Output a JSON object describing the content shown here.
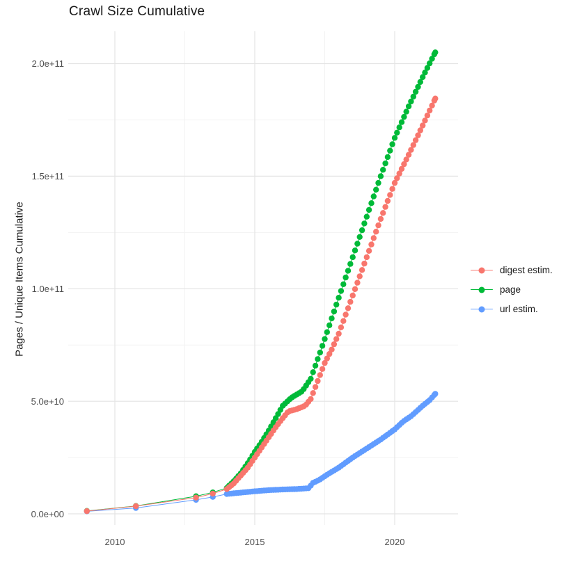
{
  "title": "Crawl Size Cumulative",
  "chart_data": {
    "type": "line",
    "title": "Crawl Size Cumulative",
    "xlabel": "",
    "ylabel": "Pages / Unique Items Cumulative",
    "value_unit": "billions (1e9) of pages / unique items",
    "x_axis": {
      "range": [
        2008.3,
        2022.3
      ],
      "ticks": [
        {
          "label": "2010",
          "year": 2010
        },
        {
          "label": "2015",
          "year": 2015
        },
        {
          "label": "2020",
          "year": 2020
        }
      ],
      "minor_years": [
        2012.5,
        2017.5
      ]
    },
    "y_axis": {
      "range_billions": [
        0,
        212
      ],
      "ticks": [
        {
          "label": "0.0e+00",
          "value_billions": 0
        },
        {
          "label": "5.0e+10",
          "value_billions": 50
        },
        {
          "label": "1.0e+11",
          "value_billions": 100
        },
        {
          "label": "1.5e+11",
          "value_billions": 150
        },
        {
          "label": "2.0e+11",
          "value_billions": 200
        }
      ],
      "minor_billions": [
        25,
        75,
        125,
        175
      ]
    },
    "grid": {
      "major_color": "#e4e4e4",
      "minor_color": "#f1f1f1",
      "background": "#ffffff"
    },
    "legend": {
      "position": "right",
      "items": [
        {
          "label": "digest estim.",
          "color": "#F8766D"
        },
        {
          "label": "page",
          "color": "#00BA38"
        },
        {
          "label": "url estim.",
          "color": "#619CFF"
        }
      ]
    },
    "point_style": {
      "shape": "circle",
      "radius_px": 4.2,
      "cadence": "monthly dots from 2014 onward"
    },
    "series": [
      {
        "name": "page",
        "color": "#00BA38",
        "points_year_billions": [
          [
            2009.0,
            1.3
          ],
          [
            2010.75,
            3.5
          ],
          [
            2012.9,
            7.8
          ],
          [
            2013.5,
            9.5
          ],
          [
            2014.0,
            11.5
          ],
          [
            2014.25,
            14.5
          ],
          [
            2014.5,
            18.0
          ],
          [
            2014.75,
            22.5
          ],
          [
            2015.0,
            27.5
          ],
          [
            2015.25,
            32.0
          ],
          [
            2015.5,
            37.0
          ],
          [
            2015.75,
            42.5
          ],
          [
            2016.0,
            48.0
          ],
          [
            2016.3,
            51.5
          ],
          [
            2016.7,
            54.5
          ],
          [
            2017.0,
            60.0
          ],
          [
            2017.4,
            74.0
          ],
          [
            2017.7,
            85.0
          ],
          [
            2018.0,
            96.0
          ],
          [
            2018.5,
            114.0
          ],
          [
            2019.0,
            132.0
          ],
          [
            2019.5,
            150.0
          ],
          [
            2020.0,
            167.0
          ],
          [
            2020.5,
            181.0
          ],
          [
            2021.0,
            194.0
          ],
          [
            2021.45,
            205.0
          ]
        ]
      },
      {
        "name": "url estim.",
        "color": "#619CFF",
        "points_year_billions": [
          [
            2009.0,
            1.1
          ],
          [
            2010.75,
            2.6
          ],
          [
            2012.9,
            6.2
          ],
          [
            2013.5,
            7.5
          ],
          [
            2014.0,
            8.8
          ],
          [
            2014.5,
            9.4
          ],
          [
            2015.0,
            10.0
          ],
          [
            2015.5,
            10.5
          ],
          [
            2016.0,
            10.8
          ],
          [
            2016.5,
            11.0
          ],
          [
            2016.95,
            11.4
          ],
          [
            2017.05,
            13.6
          ],
          [
            2017.3,
            15.0
          ],
          [
            2017.6,
            17.5
          ],
          [
            2018.0,
            20.5
          ],
          [
            2018.5,
            25.0
          ],
          [
            2019.0,
            29.0
          ],
          [
            2019.5,
            33.0
          ],
          [
            2020.0,
            37.5
          ],
          [
            2020.3,
            41.0
          ],
          [
            2020.6,
            43.5
          ],
          [
            2021.0,
            48.0
          ],
          [
            2021.25,
            50.5
          ],
          [
            2021.45,
            53.3
          ]
        ]
      },
      {
        "name": "digest estim.",
        "color": "#F8766D",
        "points_year_billions": [
          [
            2009.0,
            1.2
          ],
          [
            2010.75,
            3.4
          ],
          [
            2012.9,
            7.2
          ],
          [
            2013.5,
            9.0
          ],
          [
            2014.0,
            11.0
          ],
          [
            2014.25,
            13.5
          ],
          [
            2014.5,
            17.0
          ],
          [
            2014.75,
            20.5
          ],
          [
            2015.0,
            25.0
          ],
          [
            2015.25,
            29.5
          ],
          [
            2015.5,
            34.0
          ],
          [
            2015.75,
            38.5
          ],
          [
            2016.0,
            42.5
          ],
          [
            2016.2,
            45.5
          ],
          [
            2016.5,
            46.5
          ],
          [
            2016.8,
            48.0
          ],
          [
            2017.0,
            51.0
          ],
          [
            2017.25,
            59.0
          ],
          [
            2017.5,
            67.0
          ],
          [
            2017.75,
            73.0
          ],
          [
            2018.0,
            80.0
          ],
          [
            2018.5,
            97.0
          ],
          [
            2019.0,
            114.0
          ],
          [
            2019.5,
            131.0
          ],
          [
            2020.0,
            147.0
          ],
          [
            2020.5,
            159.5
          ],
          [
            2021.0,
            172.5
          ],
          [
            2021.45,
            184.5
          ]
        ]
      }
    ]
  }
}
